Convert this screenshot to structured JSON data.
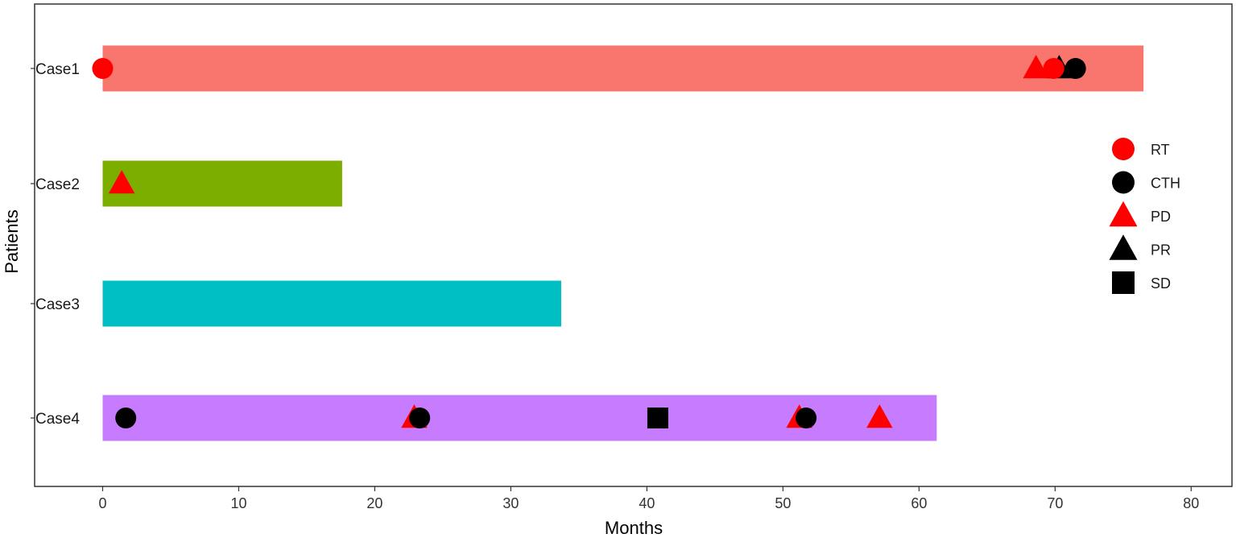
{
  "chart_data": {
    "type": "bar",
    "orientation": "horizontal",
    "xlabel": "Months",
    "ylabel": "Patients",
    "xlim": [
      -5,
      83
    ],
    "xticks": [
      0,
      10,
      20,
      30,
      40,
      50,
      60,
      70,
      80
    ],
    "grid": false,
    "legend_position": "right",
    "categories": [
      "Case1",
      "Case2",
      "Case3",
      "Case4"
    ],
    "bars": [
      {
        "patient": "Case1",
        "duration": 76.5,
        "color": "#F8766D"
      },
      {
        "patient": "Case2",
        "duration": 17.6,
        "color": "#7CAE00"
      },
      {
        "patient": "Case3",
        "duration": 33.7,
        "color": "#00BFC4"
      },
      {
        "patient": "Case4",
        "duration": 61.3,
        "color": "#C77CFF"
      }
    ],
    "legend": [
      {
        "label": "RT",
        "shape": "circle",
        "color": "#FF0000"
      },
      {
        "label": "CTH",
        "shape": "circle",
        "color": "#000000"
      },
      {
        "label": "PD",
        "shape": "triangle",
        "color": "#FF0000"
      },
      {
        "label": "PR",
        "shape": "triangle",
        "color": "#000000"
      },
      {
        "label": "SD",
        "shape": "square",
        "color": "#000000"
      }
    ],
    "events": [
      {
        "patient": "Case1",
        "month": 0.0,
        "event": "RT"
      },
      {
        "patient": "Case1",
        "month": 70.3,
        "event": "PR"
      },
      {
        "patient": "Case1",
        "month": 68.6,
        "event": "PD"
      },
      {
        "patient": "Case1",
        "month": 69.9,
        "event": "RT"
      },
      {
        "patient": "Case1",
        "month": 71.5,
        "event": "CTH"
      },
      {
        "patient": "Case2",
        "month": 1.4,
        "event": "PD"
      },
      {
        "patient": "Case4",
        "month": 1.7,
        "event": "CTH"
      },
      {
        "patient": "Case4",
        "month": 22.9,
        "event": "PD"
      },
      {
        "patient": "Case4",
        "month": 23.3,
        "event": "CTH"
      },
      {
        "patient": "Case4",
        "month": 40.8,
        "event": "SD"
      },
      {
        "patient": "Case4",
        "month": 51.2,
        "event": "PD"
      },
      {
        "patient": "Case4",
        "month": 51.7,
        "event": "CTH"
      },
      {
        "patient": "Case4",
        "month": 57.1,
        "event": "PD"
      }
    ]
  }
}
